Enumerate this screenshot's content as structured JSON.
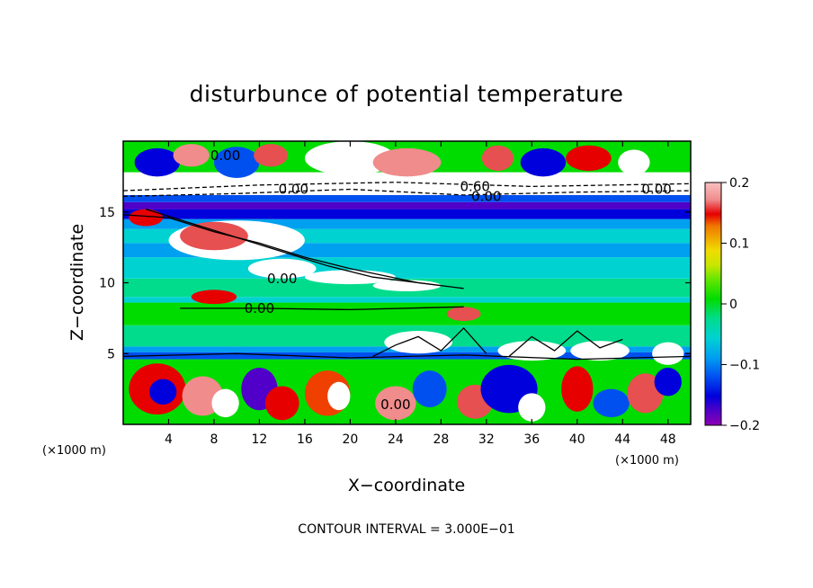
{
  "chart_data": {
    "type": "heatmap",
    "title": "disturbunce of potential temperature",
    "xlabel": "X−coordinate",
    "ylabel": "Z−coordinate",
    "x_unit": "(×1000 m)",
    "y_unit": "(×1000 m)",
    "xlim": [
      0,
      50
    ],
    "ylim": [
      0,
      20
    ],
    "x_ticks": [
      4,
      8,
      12,
      16,
      20,
      24,
      28,
      32,
      36,
      40,
      44,
      48
    ],
    "y_ticks": [
      5,
      10,
      15
    ],
    "colorbar": {
      "range": [
        -0.2,
        0.2
      ],
      "ticks": [
        "0.2",
        "0.1",
        "0",
        "−0.1",
        "−0.2"
      ],
      "tick_values": [
        0.2,
        0.1,
        0,
        -0.1,
        -0.2
      ],
      "colors": [
        "#8c00b4",
        "#5000c8",
        "#0000dc",
        "#0050f0",
        "#00a0f0",
        "#00d2d2",
        "#00dc8c",
        "#00dc00",
        "#64e600",
        "#c8e600",
        "#f0dc00",
        "#f0aa00",
        "#f07800",
        "#f04000",
        "#e60000",
        "#e65050",
        "#f08c8c",
        "#f8c0c0"
      ]
    },
    "contour_labels": [
      "0.00",
      "0.00",
      "0.60",
      "0.00",
      "0.00",
      "0.00",
      "0.00",
      "0.00"
    ],
    "contour_interval_label": "CONTOUR INTERVAL = 3.000E−01"
  }
}
